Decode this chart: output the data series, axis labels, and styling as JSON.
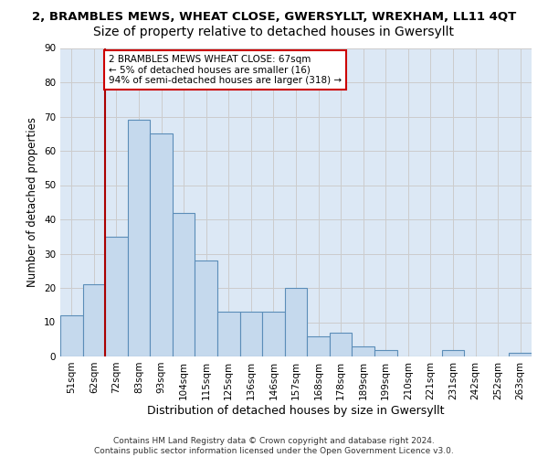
{
  "title1": "2, BRAMBLES MEWS, WHEAT CLOSE, GWERSYLLT, WREXHAM, LL11 4QT",
  "title2": "Size of property relative to detached houses in Gwersyllt",
  "xlabel": "Distribution of detached houses by size in Gwersyllt",
  "ylabel": "Number of detached properties",
  "categories": [
    "51sqm",
    "62sqm",
    "72sqm",
    "83sqm",
    "93sqm",
    "104sqm",
    "115sqm",
    "125sqm",
    "136sqm",
    "146sqm",
    "157sqm",
    "168sqm",
    "178sqm",
    "189sqm",
    "199sqm",
    "210sqm",
    "221sqm",
    "231sqm",
    "242sqm",
    "252sqm",
    "263sqm"
  ],
  "values": [
    12,
    21,
    35,
    69,
    65,
    42,
    28,
    13,
    13,
    13,
    20,
    6,
    7,
    3,
    2,
    0,
    0,
    2,
    0,
    0,
    1
  ],
  "bar_color": "#c5d9ed",
  "bar_edge_color": "#5b8db8",
  "annotation_text": "2 BRAMBLES MEWS WHEAT CLOSE: 67sqm\n← 5% of detached houses are smaller (16)\n94% of semi-detached houses are larger (318) →",
  "annotation_box_color": "#ffffff",
  "annotation_box_edge": "#cc0000",
  "property_line_color": "#aa0000",
  "ylim": [
    0,
    90
  ],
  "yticks": [
    0,
    10,
    20,
    30,
    40,
    50,
    60,
    70,
    80,
    90
  ],
  "grid_color": "#cccccc",
  "bg_color": "#dce8f5",
  "footer1": "Contains HM Land Registry data © Crown copyright and database right 2024.",
  "footer2": "Contains public sector information licensed under the Open Government Licence v3.0.",
  "title1_fontsize": 9.5,
  "title2_fontsize": 10,
  "xlabel_fontsize": 9,
  "ylabel_fontsize": 8.5,
  "tick_fontsize": 7.5,
  "footer_fontsize": 6.5,
  "annot_fontsize": 7.5
}
